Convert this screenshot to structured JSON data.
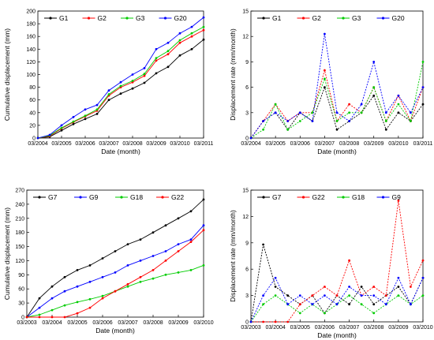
{
  "chart_data": [
    {
      "type": "line",
      "panel": "top-left",
      "xlabel": "Date (month)",
      "ylabel": "Cumulative displacement (mm)",
      "x_ticks": [
        "03/2004",
        "03/2005",
        "03/2006",
        "03/2007",
        "03/2008",
        "03/2009",
        "03/2010",
        "03/2011"
      ],
      "y_ticks": [
        "0",
        "20",
        "40",
        "60",
        "80",
        "100",
        "120",
        "140",
        "160",
        "180",
        "200"
      ],
      "xlim": [
        "03/2004",
        "03/2011"
      ],
      "ylim": [
        0,
        200
      ],
      "legend_position": "top-left",
      "colors": {
        "G1": "#000000",
        "G2": "#ff0000",
        "G3": "#00cc00",
        "G20": "#0000ff"
      },
      "series": [
        {
          "name": "G1",
          "x": [
            "03/2004",
            "09/2004",
            "03/2005",
            "09/2005",
            "03/2006",
            "09/2006",
            "03/2007",
            "09/2007",
            "03/2008",
            "09/2008",
            "03/2009",
            "09/2009",
            "03/2010",
            "09/2010",
            "03/2011"
          ],
          "values": [
            0,
            2,
            12,
            22,
            30,
            38,
            60,
            70,
            78,
            87,
            102,
            112,
            130,
            140,
            155
          ]
        },
        {
          "name": "G2",
          "x": [
            "03/2004",
            "09/2004",
            "03/2005",
            "09/2005",
            "03/2006",
            "09/2006",
            "03/2007",
            "09/2007",
            "03/2008",
            "09/2008",
            "03/2009",
            "09/2009",
            "03/2010",
            "09/2010",
            "03/2011"
          ],
          "values": [
            0,
            3,
            15,
            25,
            34,
            43,
            67,
            80,
            88,
            98,
            122,
            132,
            150,
            160,
            170
          ]
        },
        {
          "name": "G3",
          "x": [
            "03/2004",
            "09/2004",
            "03/2005",
            "09/2005",
            "03/2006",
            "09/2006",
            "03/2007",
            "09/2007",
            "03/2008",
            "09/2008",
            "03/2009",
            "09/2009",
            "03/2010",
            "09/2010",
            "03/2011"
          ],
          "values": [
            0,
            4,
            16,
            26,
            35,
            45,
            69,
            82,
            90,
            101,
            126,
            137,
            154,
            165,
            175
          ]
        },
        {
          "name": "G20",
          "x": [
            "03/2004",
            "09/2004",
            "03/2005",
            "09/2005",
            "03/2006",
            "09/2006",
            "03/2007",
            "09/2007",
            "03/2008",
            "09/2008",
            "03/2009",
            "09/2009",
            "03/2010",
            "09/2010",
            "03/2011"
          ],
          "values": [
            0,
            5,
            20,
            33,
            45,
            52,
            75,
            88,
            100,
            110,
            140,
            150,
            165,
            175,
            190
          ]
        }
      ]
    },
    {
      "type": "line",
      "panel": "top-right",
      "xlabel": "Date (month)",
      "ylabel": "Displacement rate (mm/month)",
      "x_ticks": [
        "03/2004",
        "03/2005",
        "03/2006",
        "03/2007",
        "03/2008",
        "03/2009",
        "03/2010",
        "03/2011"
      ],
      "y_ticks": [
        "0",
        "3",
        "6",
        "9",
        "12",
        "15"
      ],
      "xlim": [
        "03/2004",
        "03/2011"
      ],
      "ylim": [
        0,
        15
      ],
      "legend_position": "top",
      "colors": {
        "G1": "#000000",
        "G2": "#ff0000",
        "G3": "#00cc00",
        "G20": "#0000ff"
      },
      "series": [
        {
          "name": "G1",
          "x": [
            "03/2004",
            "09/2004",
            "03/2005",
            "09/2005",
            "03/2006",
            "09/2006",
            "03/2007",
            "09/2007",
            "03/2008",
            "09/2008",
            "03/2009",
            "09/2009",
            "03/2010",
            "09/2010",
            "03/2011"
          ],
          "values": [
            0,
            2,
            3,
            1,
            3,
            2,
            6,
            1,
            2,
            3,
            5,
            1,
            3,
            2,
            4
          ]
        },
        {
          "name": "G2",
          "x": [
            "03/2004",
            "09/2004",
            "03/2005",
            "09/2005",
            "03/2006",
            "09/2006",
            "03/2007",
            "09/2007",
            "03/2008",
            "09/2008",
            "03/2009",
            "09/2009",
            "03/2010",
            "09/2010",
            "03/2011"
          ],
          "values": [
            0,
            2,
            4,
            2,
            3,
            3,
            8,
            2,
            4,
            3,
            6,
            2,
            5,
            2,
            6
          ]
        },
        {
          "name": "G3",
          "x": [
            "03/2004",
            "09/2004",
            "03/2005",
            "09/2005",
            "03/2006",
            "09/2006",
            "03/2007",
            "09/2007",
            "03/2008",
            "09/2008",
            "03/2009",
            "09/2009",
            "03/2010",
            "09/2010",
            "03/2011"
          ],
          "values": [
            0,
            1,
            4,
            1,
            2,
            3,
            7,
            2,
            3,
            3,
            6,
            2,
            4,
            2,
            9
          ]
        },
        {
          "name": "G20",
          "x": [
            "03/2004",
            "09/2004",
            "03/2005",
            "09/2005",
            "03/2006",
            "09/2006",
            "03/2007",
            "09/2007",
            "03/2008",
            "09/2008",
            "03/2009",
            "09/2009",
            "03/2010",
            "09/2010",
            "03/2011"
          ],
          "values": [
            0,
            2,
            3,
            2,
            3,
            2,
            12.3,
            3,
            2,
            4,
            9,
            3,
            5,
            3,
            6
          ]
        }
      ]
    },
    {
      "type": "line",
      "panel": "bottom-left",
      "xlabel": "Date (month)",
      "ylabel": "Cumulative displacement (mm)",
      "x_ticks": [
        "03/2003",
        "03/2004",
        "03/2005",
        "03/2006",
        "03/2007",
        "03/2008",
        "03/2009",
        "03/2010"
      ],
      "y_ticks": [
        "0",
        "30",
        "60",
        "90",
        "120",
        "150",
        "180",
        "210",
        "240",
        "270"
      ],
      "xlim": [
        "03/2003",
        "03/2010"
      ],
      "ylim": [
        0,
        270
      ],
      "legend_position": "top-left",
      "colors": {
        "G7": "#000000",
        "G9": "#0000ff",
        "G18": "#00cc00",
        "G22": "#ff0000"
      },
      "series": [
        {
          "name": "G7",
          "x": [
            "03/2003",
            "09/2003",
            "03/2004",
            "09/2004",
            "03/2005",
            "09/2005",
            "03/2006",
            "09/2006",
            "03/2007",
            "09/2007",
            "03/2008",
            "09/2008",
            "03/2009",
            "09/2009",
            "03/2010"
          ],
          "values": [
            0,
            40,
            65,
            85,
            100,
            110,
            125,
            140,
            155,
            165,
            180,
            195,
            210,
            225,
            250
          ]
        },
        {
          "name": "G9",
          "x": [
            "03/2003",
            "09/2003",
            "03/2004",
            "09/2004",
            "03/2005",
            "09/2005",
            "03/2006",
            "09/2006",
            "03/2007",
            "09/2007",
            "03/2008",
            "09/2008",
            "03/2009",
            "09/2009",
            "03/2010"
          ],
          "values": [
            0,
            20,
            40,
            55,
            65,
            75,
            85,
            95,
            110,
            120,
            130,
            140,
            155,
            165,
            195
          ]
        },
        {
          "name": "G18",
          "x": [
            "03/2003",
            "09/2003",
            "03/2004",
            "09/2004",
            "03/2005",
            "09/2005",
            "03/2006",
            "09/2006",
            "03/2007",
            "09/2007",
            "03/2008",
            "09/2008",
            "03/2009",
            "09/2009",
            "03/2010"
          ],
          "values": [
            0,
            5,
            15,
            25,
            32,
            38,
            45,
            55,
            65,
            75,
            82,
            90,
            95,
            100,
            110
          ]
        },
        {
          "name": "G22",
          "x": [
            "03/2003",
            "09/2003",
            "03/2004",
            "09/2004",
            "03/2005",
            "09/2005",
            "03/2006",
            "09/2006",
            "03/2007",
            "09/2007",
            "03/2008",
            "09/2008",
            "03/2009",
            "09/2009",
            "03/2010"
          ],
          "values": [
            0,
            0,
            0,
            0,
            8,
            20,
            40,
            55,
            70,
            85,
            100,
            120,
            140,
            160,
            185
          ]
        }
      ]
    },
    {
      "type": "line",
      "panel": "bottom-right",
      "xlabel": "Date (month)",
      "ylabel": "Displacement rate (mm/month)",
      "x_ticks": [
        "03/2003",
        "03/2004",
        "03/2005",
        "03/2006",
        "03/2007",
        "03/2008",
        "03/2009",
        "03/2010"
      ],
      "y_ticks": [
        "0",
        "3",
        "6",
        "9",
        "12",
        "15"
      ],
      "xlim": [
        "03/2003",
        "03/2010"
      ],
      "ylim": [
        0,
        15
      ],
      "legend_position": "top",
      "colors": {
        "G7": "#000000",
        "G22": "#ff0000",
        "G18": "#00cc00",
        "G9": "#0000ff"
      },
      "series": [
        {
          "name": "G7",
          "x": [
            "03/2003",
            "09/2003",
            "03/2004",
            "09/2004",
            "03/2005",
            "09/2005",
            "03/2006",
            "09/2006",
            "03/2007",
            "09/2007",
            "03/2008",
            "09/2008",
            "03/2009",
            "09/2009",
            "03/2010"
          ],
          "values": [
            0,
            8.8,
            4,
            3,
            2,
            3,
            1,
            3,
            2,
            4,
            2,
            3,
            4,
            2,
            5
          ]
        },
        {
          "name": "G22",
          "x": [
            "03/2003",
            "09/2003",
            "03/2004",
            "09/2004",
            "03/2005",
            "09/2005",
            "03/2006",
            "09/2006",
            "03/2007",
            "09/2007",
            "03/2008",
            "09/2008",
            "03/2009",
            "09/2009",
            "03/2010"
          ],
          "values": [
            0,
            0,
            0,
            0,
            2,
            3,
            4,
            3,
            7,
            3,
            4,
            3,
            13.8,
            4,
            7
          ]
        },
        {
          "name": "G18",
          "x": [
            "03/2003",
            "09/2003",
            "03/2004",
            "09/2004",
            "03/2005",
            "09/2005",
            "03/2006",
            "09/2006",
            "03/2007",
            "09/2007",
            "03/2008",
            "09/2008",
            "03/2009",
            "09/2009",
            "03/2010"
          ],
          "values": [
            0,
            2,
            3,
            2,
            1,
            2,
            1,
            2,
            3,
            2,
            1,
            2,
            3,
            2,
            3
          ]
        },
        {
          "name": "G9",
          "x": [
            "03/2003",
            "09/2003",
            "03/2004",
            "09/2004",
            "03/2005",
            "09/2005",
            "03/2006",
            "09/2006",
            "03/2007",
            "09/2007",
            "03/2008",
            "09/2008",
            "03/2009",
            "09/2009",
            "03/2010"
          ],
          "values": [
            0,
            3,
            5,
            2,
            3,
            2,
            3,
            2,
            4,
            3,
            3,
            2,
            5,
            2,
            5
          ]
        }
      ]
    }
  ]
}
